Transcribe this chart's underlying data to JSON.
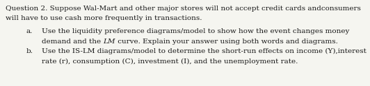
{
  "background_color": "#f5f5f0",
  "figsize": [
    5.32,
    1.25
  ],
  "dpi": 100,
  "title_line1": "Question 2. Suppose Wal-Mart and other major stores will not accept credit cards andconsumers",
  "title_line2": "will have to use cash more frequently in transactions.",
  "item_a_label": "a.",
  "item_a_line1": "Use the liquidity preference diagrams/model to show how the event changes money",
  "item_a_line2_normal1": "demand and the ",
  "item_a_line2_italic": "LM",
  "item_a_line2_normal2": " curve. Explain your answer using both words and diagrams.",
  "item_b_label": "b.",
  "item_b_line1": "Use the IS-LM diagrams/model to determine the short-run effects on income (Y),interest",
  "item_b_line2": "rate (r), consumption (C), investment (I), and the unemployment rate.",
  "font_size_body": 7.5,
  "font_family": "DejaVu Serif",
  "text_color": "#1a1a1a"
}
